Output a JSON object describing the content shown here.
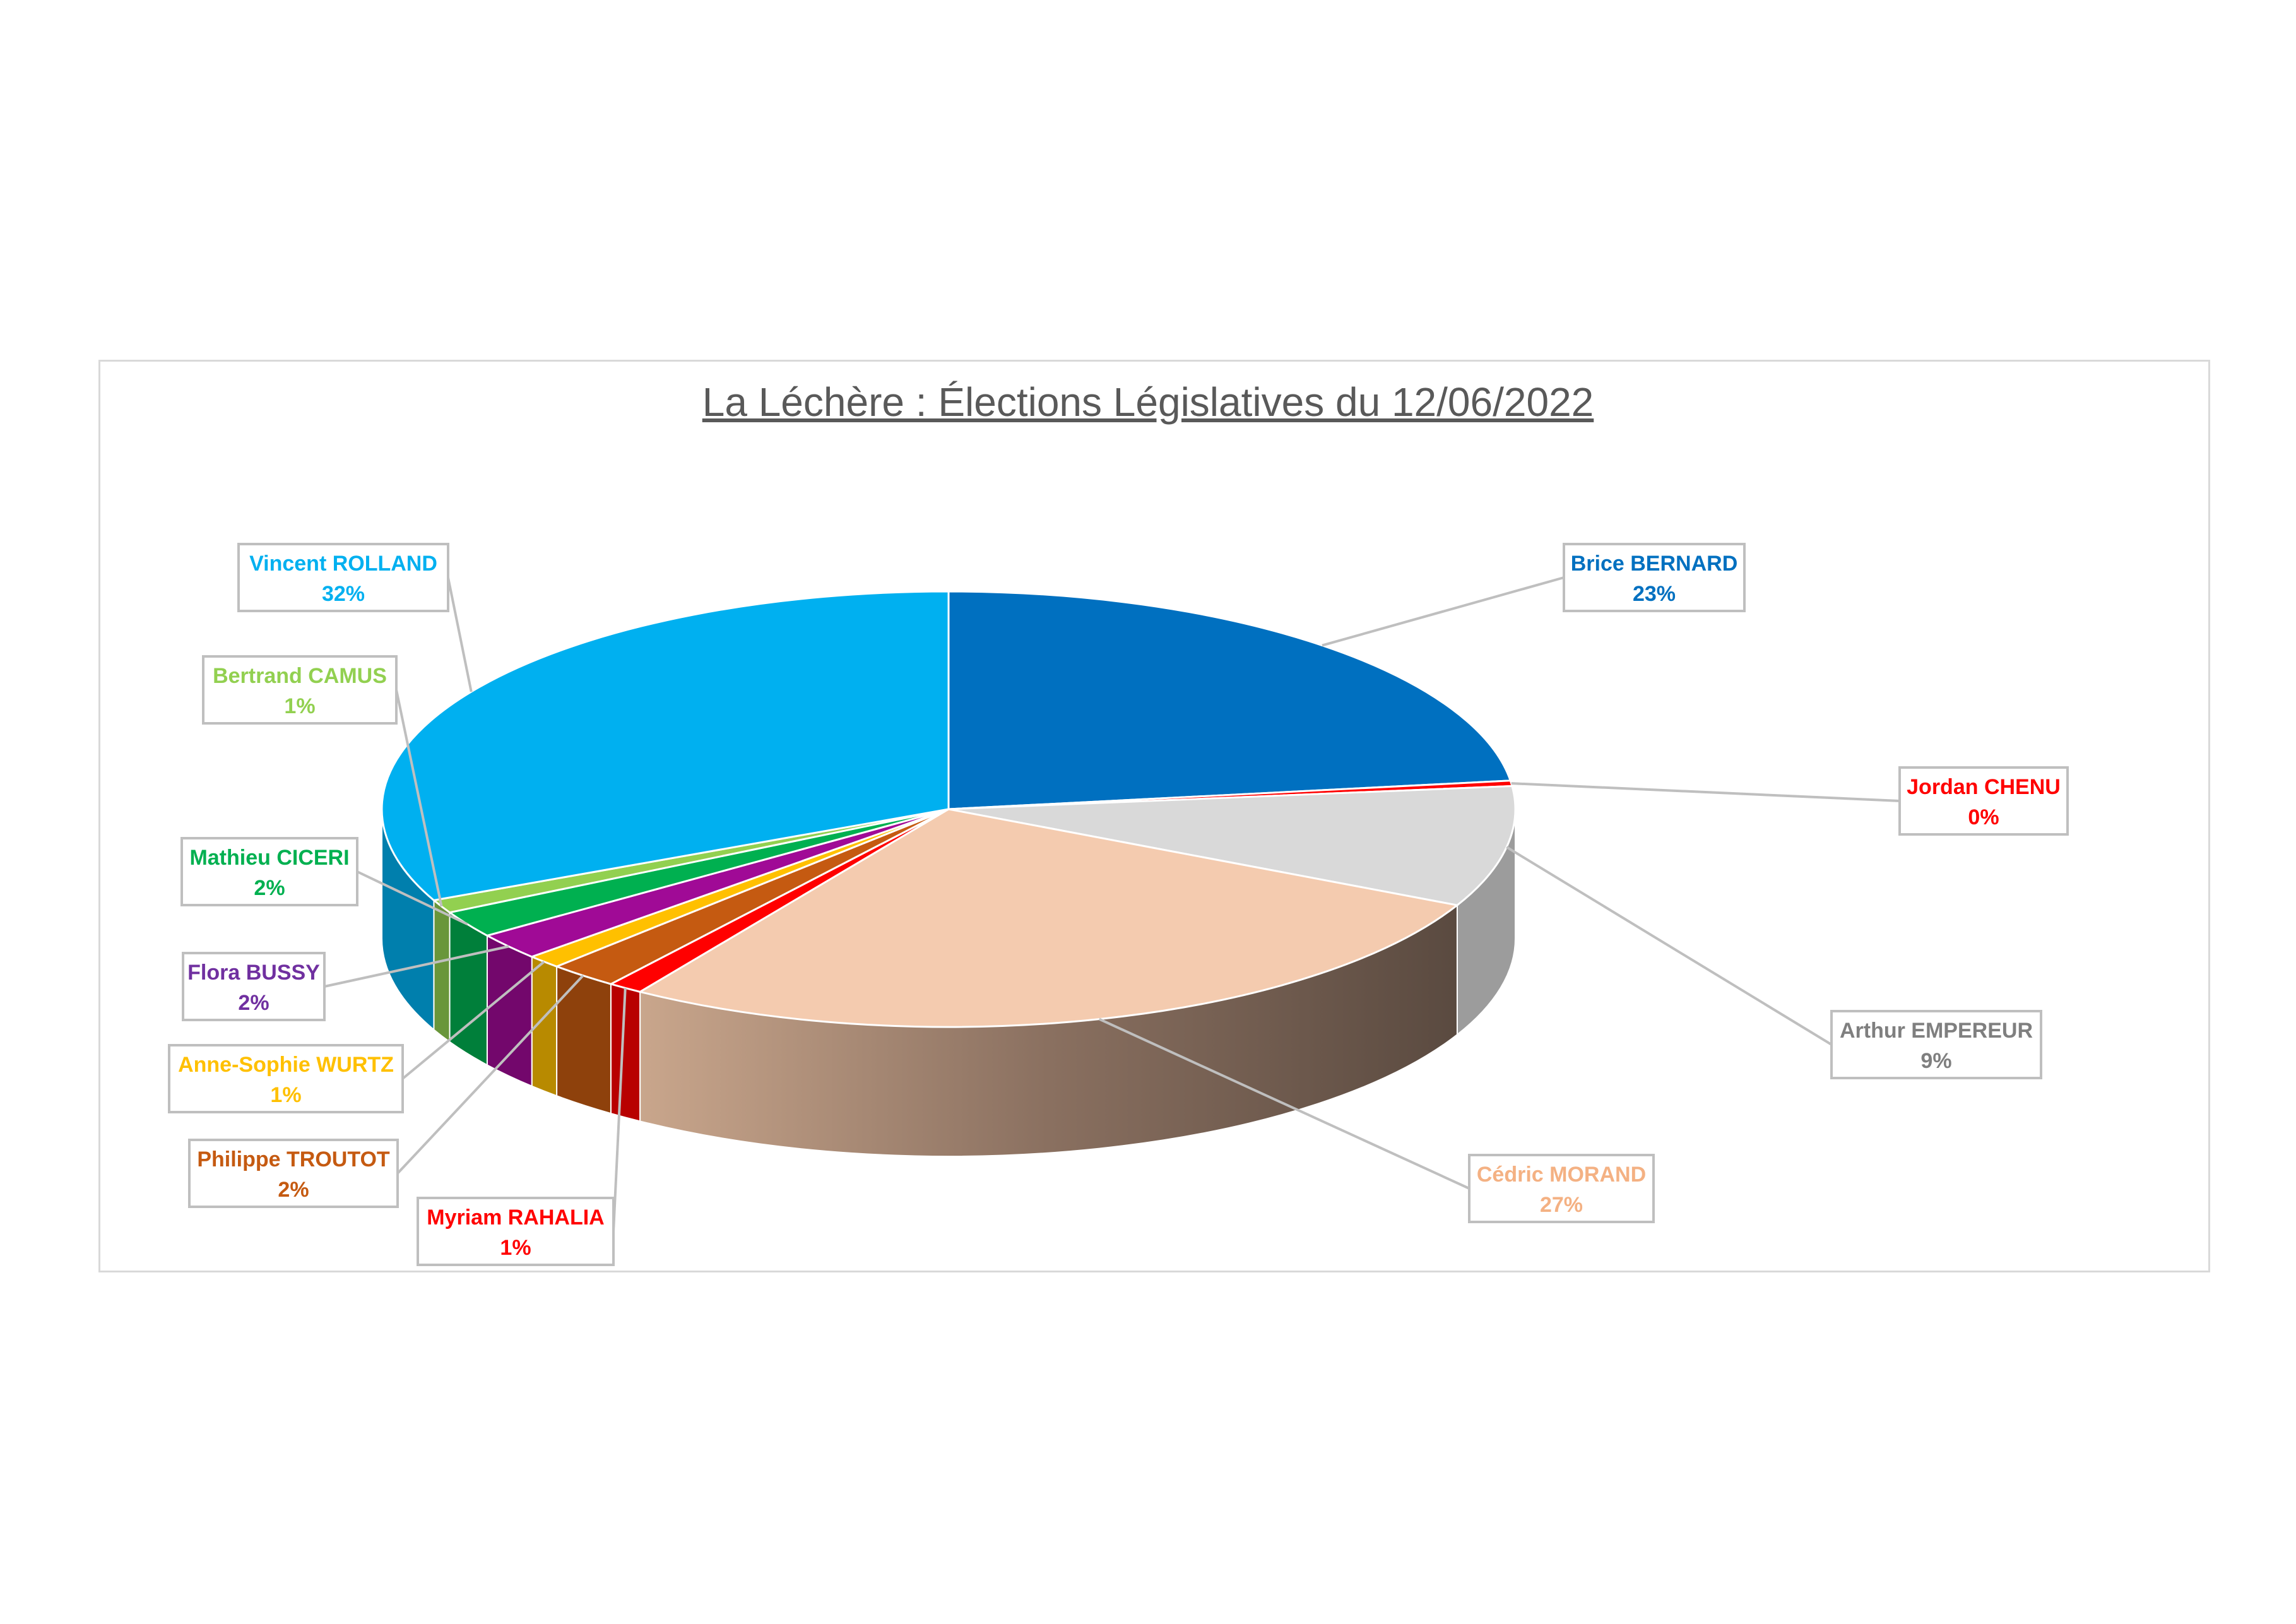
{
  "chart_data": {
    "type": "pie",
    "title": "La Léchère : Élections Législatives du 12/06/2022",
    "slices": [
      {
        "name": "Brice BERNARD",
        "label": "23%",
        "value": 23,
        "color": "#0070c0"
      },
      {
        "name": "Jordan CHENU",
        "label": "0%",
        "value": 0.4,
        "color": "#ff0000"
      },
      {
        "name": "Arthur EMPEREUR",
        "label": "9%",
        "value": 9,
        "color": "#d9d9d9"
      },
      {
        "name": "Cédric MORAND",
        "label": "27%",
        "value": 27,
        "color": "#f4cbaf"
      },
      {
        "name": "Myriam RAHALIA",
        "label": "1%",
        "value": 1,
        "color": "#ff0000"
      },
      {
        "name": "Philippe TROUTOT",
        "label": "2%",
        "value": 2,
        "color": "#c55a11"
      },
      {
        "name": "Anne-Sophie WURTZ",
        "label": "1%",
        "value": 1,
        "color": "#ffc000"
      },
      {
        "name": "Flora BUSSY",
        "label": "2%",
        "value": 2,
        "color": "#a00a96"
      },
      {
        "name": "Mathieu CICERI",
        "label": "2%",
        "value": 2,
        "color": "#00b050"
      },
      {
        "name": "Bertrand CAMUS",
        "label": "1%",
        "value": 1,
        "color": "#92d050"
      },
      {
        "name": "Vincent ROLLAND",
        "label": "32%",
        "value": 32,
        "color": "#00b0f0"
      }
    ],
    "label_colors": {
      "Brice BERNARD": "#0070c0",
      "Jordan CHENU": "#ff0000",
      "Arthur EMPEREUR": "#7f7f7f",
      "Cédric MORAND": "#f4b183",
      "Myriam RAHALIA": "#ff0000",
      "Philippe TROUTOT": "#c55a11",
      "Anne-Sophie WURTZ": "#ffc000",
      "Flora BUSSY": "#7030a0",
      "Mathieu CICERI": "#00b050",
      "Bertrand CAMUS": "#92d050",
      "Vincent ROLLAND": "#00b0f0"
    },
    "legend": "none",
    "style": "3d-exploded-pie"
  }
}
